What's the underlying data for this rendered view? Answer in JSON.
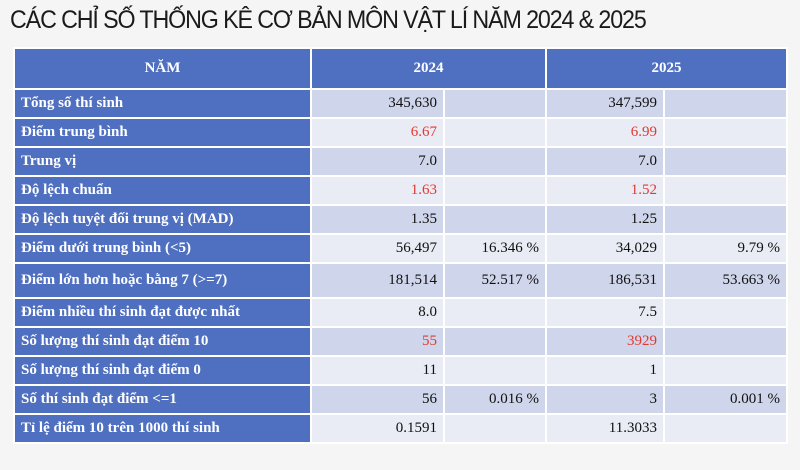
{
  "title": "CÁC CHỈ SỐ THỐNG KÊ CƠ BẢN MÔN VẬT LÍ NĂM 2024 & 2025",
  "colors": {
    "header": "#4f6fc0",
    "row_dark": "#cfd5ea",
    "row_light": "#e9ebf5",
    "highlight": "#e03a32"
  },
  "table": {
    "headers": [
      "NĂM",
      "2024",
      "2025"
    ],
    "rows": [
      {
        "label": "Tổng số thí sinh",
        "v2024": "345,630",
        "p2024": "",
        "v2025": "347,599",
        "p2025": "",
        "highlight": false
      },
      {
        "label": "Điểm trung bình",
        "v2024": "6.67",
        "p2024": "",
        "v2025": "6.99",
        "p2025": "",
        "highlight": true
      },
      {
        "label": "Trung vị",
        "v2024": "7.0",
        "p2024": "",
        "v2025": "7.0",
        "p2025": "",
        "highlight": false
      },
      {
        "label": "Độ lệch chuẩn",
        "v2024": "1.63",
        "p2024": "",
        "v2025": "1.52",
        "p2025": "",
        "highlight": true
      },
      {
        "label": "Độ lệch tuyệt đối trung vị (MAD)",
        "v2024": "1.35",
        "p2024": "",
        "v2025": "1.25",
        "p2025": "",
        "highlight": false
      },
      {
        "label": "Điểm dưới trung bình (<5)",
        "v2024": "56,497",
        "p2024": "16.346 %",
        "v2025": "34,029",
        "p2025": "9.79 %",
        "highlight": false
      },
      {
        "label": "Điểm lớn hơn hoặc bằng 7 (>=7)",
        "v2024": "181,514",
        "p2024": "52.517 %",
        "v2025": "186,531",
        "p2025": "53.663 %",
        "highlight": false
      },
      {
        "label": "Điểm nhiều thí sinh đạt được nhất",
        "v2024": "8.0",
        "p2024": "",
        "v2025": "7.5",
        "p2025": "",
        "highlight": false
      },
      {
        "label": "Số lượng thí sinh đạt điểm 10",
        "v2024": "55",
        "p2024": "",
        "v2025": "3929",
        "p2025": "",
        "highlight": true
      },
      {
        "label": "Số lượng thí sinh đạt điểm 0",
        "v2024": "11",
        "p2024": "",
        "v2025": "1",
        "p2025": "",
        "highlight": false
      },
      {
        "label": "Số thí sinh đạt điểm <=1",
        "v2024": "56",
        "p2024": "0.016 %",
        "v2025": "3",
        "p2025": "0.001 %",
        "highlight": false
      },
      {
        "label": "Tỉ lệ điểm 10 trên 1000 thí sinh",
        "v2024": "0.1591",
        "p2024": "",
        "v2025": "11.3033",
        "p2025": "",
        "highlight": false
      }
    ]
  }
}
